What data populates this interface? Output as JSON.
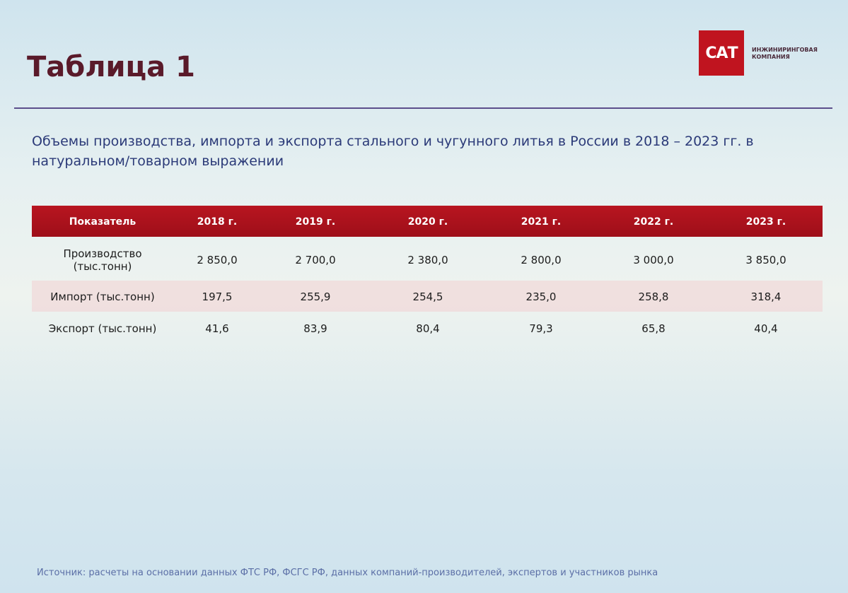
{
  "header": {
    "title": "Таблица 1",
    "logo": {
      "mark": "САТ",
      "line1": "ИНЖИНИРИНГОВАЯ",
      "line2": "КОМПАНИЯ"
    }
  },
  "subtitle": {
    "line1": "Объемы производства, импорта и экспорта стального и чугунного литья в России в 2018 – 2023 гг. в",
    "line2": "натуральном/товарном выражении"
  },
  "table": {
    "columns": [
      "Показатель",
      "2018 г.",
      "2019 г.",
      "2020 г.",
      "2021 г.",
      "2022 г.",
      "2023 г."
    ],
    "rows": [
      [
        [
          "Производство",
          "(тыс.тонн)"
        ],
        "2 850,0",
        "2 700,0",
        "2 380,0",
        "2 800,0",
        "3 000,0",
        "3 850,0"
      ],
      [
        "Импорт (тыс.тонн)",
        "197,5",
        "255,9",
        "254,5",
        "235,0",
        "258,8",
        "318,4"
      ],
      [
        "Экспорт (тыс.тонн)",
        "41,6",
        "83,9",
        "80,4",
        "79,3",
        "65,8",
        "40,4"
      ]
    ]
  },
  "source": "Источник: расчеты на основании данных ФТС РФ, ФСГС РФ, данных компаний-производителей, экспертов и участников рынка"
}
